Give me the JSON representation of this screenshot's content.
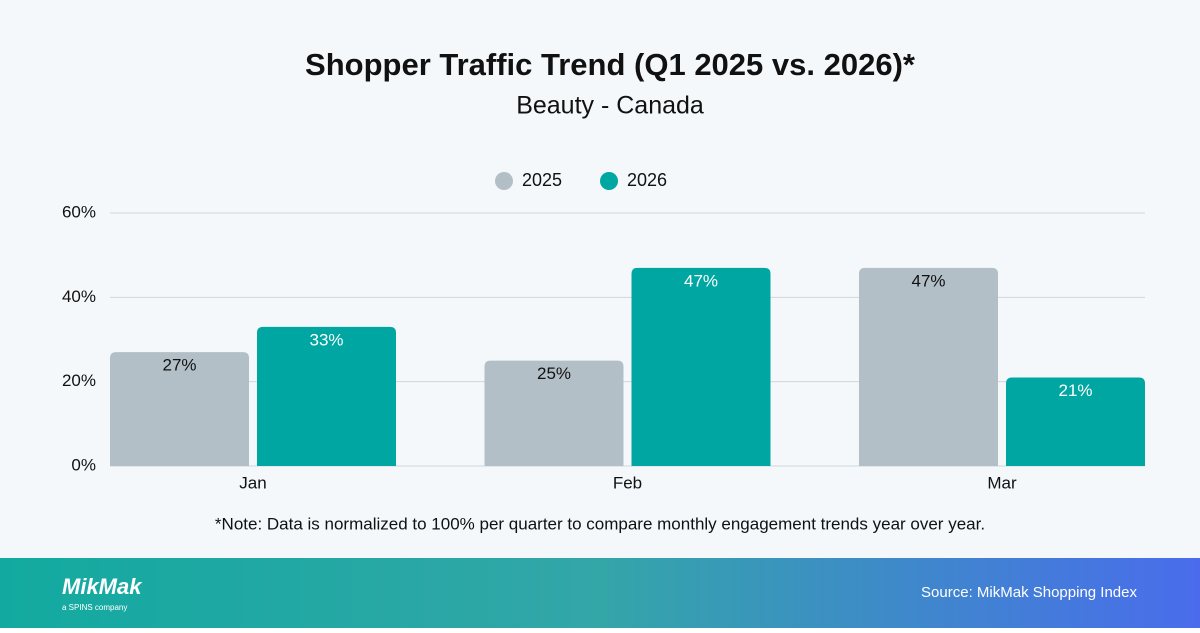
{
  "chart_data": {
    "type": "bar",
    "title": "Shopper Traffic Trend (Q1 2025 vs. 2026)*",
    "subtitle": "Beauty - Canada",
    "categories": [
      "Jan",
      "Feb",
      "Mar"
    ],
    "series": [
      {
        "name": "2025",
        "color": "#b3bfc6",
        "values": [
          27,
          25,
          47
        ],
        "value_labels": [
          "27%",
          "25%",
          "47%"
        ]
      },
      {
        "name": "2026",
        "color": "#00a6a1",
        "values": [
          33,
          47,
          21
        ],
        "value_labels": [
          "33%",
          "47%",
          "21%"
        ]
      }
    ],
    "ylim": [
      0,
      60
    ],
    "yticks": [
      {
        "value": 0,
        "label": "0%"
      },
      {
        "value": 20,
        "label": "20%"
      },
      {
        "value": 40,
        "label": "40%"
      },
      {
        "value": 60,
        "label": "60%"
      }
    ],
    "grid": true,
    "legend": "top",
    "note": "*Note: Data is normalized to 100% per quarter to compare monthly engagement trends year over year."
  },
  "footer": {
    "logo": "MikMak",
    "logo_sub": "a SPINS company",
    "source": "Source: MikMak Shopping Index"
  }
}
